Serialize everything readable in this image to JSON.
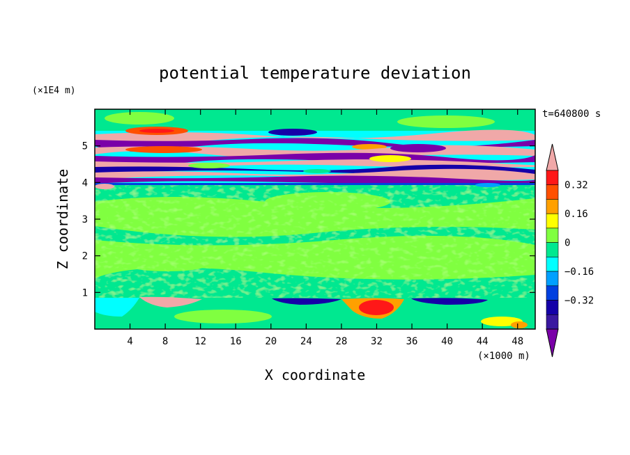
{
  "chart_data": {
    "type": "heatmap",
    "title": "potential temperature deviation",
    "xlabel": "X coordinate",
    "ylabel": "Z coordinate",
    "x_unit_label": "(×1000 m)",
    "y_unit_label": "(×1E4 m)",
    "time_label": "t=640800 s",
    "xlim": [
      0,
      50
    ],
    "ylim": [
      0,
      6
    ],
    "x_ticks": [
      4,
      8,
      12,
      16,
      20,
      24,
      28,
      32,
      36,
      40,
      44,
      48
    ],
    "y_ticks": [
      1,
      2,
      3,
      4,
      5
    ],
    "colorbar": {
      "levels": [
        -0.48,
        -0.4,
        -0.32,
        -0.24,
        -0.16,
        -0.08,
        0,
        0.08,
        0.16,
        0.24,
        0.32,
        0.4
      ],
      "colors": [
        "#7a00a8",
        "#3a18a0",
        "#1500a8",
        "#0040e0",
        "#00a0ff",
        "#00ffff",
        "#00e890",
        "#80ff40",
        "#ffff00",
        "#ffa000",
        "#ff5000",
        "#ff1818",
        "#f0a8a8"
      ],
      "tick_labels": [
        "0.32",
        "0.16",
        "0",
        "−0.16",
        "−0.32"
      ],
      "tick_values": [
        0.32,
        0.16,
        0,
        -0.16,
        -0.32
      ]
    },
    "bands": [
      {
        "z_range": [
          5.4,
          6.0
        ],
        "dominant": "green",
        "value": 0.05
      },
      {
        "z_range": [
          4.0,
          5.4
        ],
        "dominant": "mixed pink/purple/blue layers",
        "value_range": [
          -0.48,
          0.4
        ]
      },
      {
        "z_range": [
          0.9,
          4.0
        ],
        "dominant": "green/light-green",
        "value_range": [
          -0.04,
          0.12
        ]
      },
      {
        "z_range": [
          0.0,
          0.9
        ],
        "dominant": "green with cyan, orange anomalies",
        "value_range": [
          -0.32,
          0.4
        ]
      }
    ]
  }
}
